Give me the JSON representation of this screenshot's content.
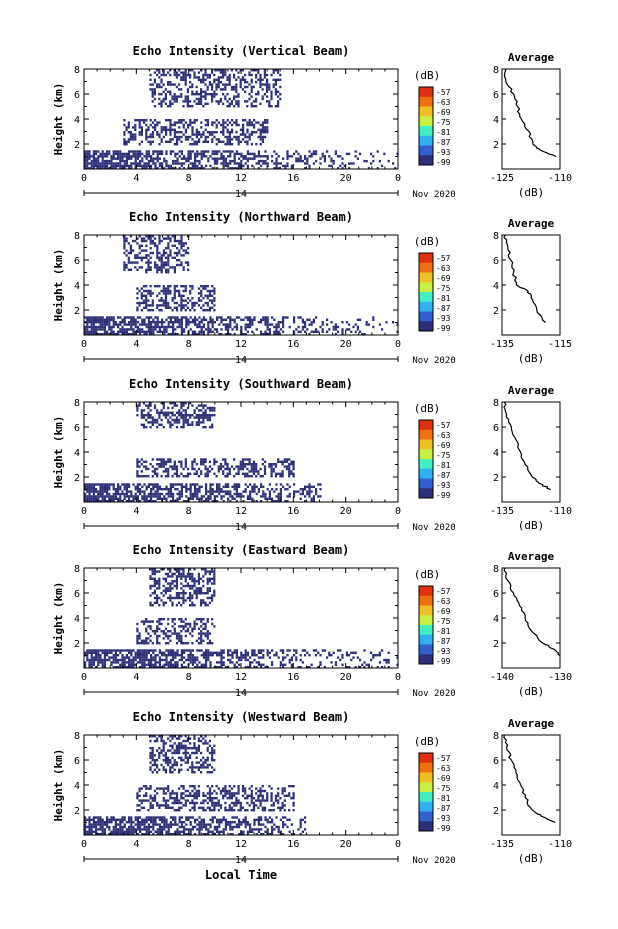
{
  "figure": {
    "xlabel": "Local Time",
    "date_label": "Nov 2020",
    "day_label": "14",
    "cbar_unit": "(dB)",
    "avg_title": "Average",
    "avg_xlabel": "(dB)"
  },
  "colorbar": {
    "ticks": [
      "-57",
      "-63",
      "-69",
      "-75",
      "-81",
      "-87",
      "-93",
      "-99"
    ],
    "colors": [
      "#e03010",
      "#f07010",
      "#f0c020",
      "#c8f040",
      "#40f0c0",
      "#30b0f0",
      "#3060d0",
      "#2c2e78"
    ]
  },
  "panels": [
    {
      "title": "Echo Intensity (Vertical Beam)",
      "avg_xticks": [
        "-125",
        "-110"
      ]
    },
    {
      "title": "Echo Intensity (Northward Beam)",
      "avg_xticks": [
        "-135",
        "-115"
      ]
    },
    {
      "title": "Echo Intensity (Southward Beam)",
      "avg_xticks": [
        "-135",
        "-110"
      ]
    },
    {
      "title": "Echo Intensity (Eastward Beam)",
      "avg_xticks": [
        "-140",
        "-130"
      ]
    },
    {
      "title": "Echo Intensity (Westward Beam)",
      "avg_xticks": [
        "-135",
        "-110"
      ]
    }
  ],
  "chart_data": [
    {
      "type": "heatmap",
      "title": "Echo Intensity (Vertical Beam)",
      "xlabel": "",
      "ylabel": "Height (km)",
      "xlim": [
        0,
        24
      ],
      "ylim": [
        0,
        8
      ],
      "xticks": [
        "0",
        "4",
        "8",
        "12",
        "16",
        "20",
        "0"
      ],
      "yticks": [
        "2",
        "4",
        "6",
        "8"
      ],
      "colorbar_label": "(dB)",
      "color_range": [
        -99,
        -57
      ],
      "echo_regions": [
        {
          "x": [
            0,
            24
          ],
          "y": [
            0,
            1.5
          ]
        },
        {
          "x": [
            3,
            14
          ],
          "y": [
            2,
            4
          ]
        },
        {
          "x": [
            5,
            15
          ],
          "y": [
            5,
            8
          ]
        }
      ],
      "average_profile": {
        "xlim": [
          -125,
          -110
        ],
        "ylim": [
          0,
          8
        ],
        "points": [
          {
            "db": -124,
            "h": 8
          },
          {
            "db": -124,
            "h": 7
          },
          {
            "db": -122,
            "h": 6
          },
          {
            "db": -121,
            "h": 5
          },
          {
            "db": -120,
            "h": 4
          },
          {
            "db": -118,
            "h": 3
          },
          {
            "db": -117,
            "h": 2
          },
          {
            "db": -115,
            "h": 1.5
          },
          {
            "db": -111,
            "h": 1
          }
        ]
      }
    },
    {
      "type": "heatmap",
      "title": "Echo Intensity (Northward Beam)",
      "xlabel": "",
      "ylabel": "Height (km)",
      "xlim": [
        0,
        24
      ],
      "ylim": [
        0,
        8
      ],
      "xticks": [
        "0",
        "4",
        "8",
        "12",
        "16",
        "20",
        "0"
      ],
      "yticks": [
        "2",
        "4",
        "6",
        "8"
      ],
      "colorbar_label": "(dB)",
      "color_range": [
        -99,
        -57
      ],
      "echo_regions": [
        {
          "x": [
            0,
            24
          ],
          "y": [
            0,
            1.5
          ]
        },
        {
          "x": [
            4,
            10
          ],
          "y": [
            2,
            4
          ]
        },
        {
          "x": [
            3,
            8
          ],
          "y": [
            5,
            8
          ]
        }
      ],
      "average_profile": {
        "xlim": [
          -135,
          -115
        ],
        "ylim": [
          0,
          8
        ],
        "points": [
          {
            "db": -134,
            "h": 8
          },
          {
            "db": -133,
            "h": 7
          },
          {
            "db": -132,
            "h": 6
          },
          {
            "db": -131,
            "h": 5
          },
          {
            "db": -130,
            "h": 4
          },
          {
            "db": -126,
            "h": 3.5
          },
          {
            "db": -125,
            "h": 3
          },
          {
            "db": -123,
            "h": 2
          },
          {
            "db": -120,
            "h": 1
          }
        ]
      }
    },
    {
      "type": "heatmap",
      "title": "Echo Intensity (Southward Beam)",
      "xlabel": "",
      "ylabel": "Height (km)",
      "xlim": [
        0,
        24
      ],
      "ylim": [
        0,
        8
      ],
      "xticks": [
        "0",
        "4",
        "8",
        "12",
        "16",
        "20",
        "0"
      ],
      "yticks": [
        "2",
        "4",
        "6",
        "8"
      ],
      "colorbar_label": "(dB)",
      "color_range": [
        -99,
        -57
      ],
      "echo_regions": [
        {
          "x": [
            0,
            18
          ],
          "y": [
            0,
            1.5
          ]
        },
        {
          "x": [
            4,
            16
          ],
          "y": [
            2,
            3.5
          ]
        },
        {
          "x": [
            4,
            10
          ],
          "y": [
            6,
            8
          ]
        }
      ],
      "average_profile": {
        "xlim": [
          -135,
          -110
        ],
        "ylim": [
          0,
          8
        ],
        "points": [
          {
            "db": -134,
            "h": 8
          },
          {
            "db": -133,
            "h": 7
          },
          {
            "db": -131,
            "h": 6
          },
          {
            "db": -129,
            "h": 5
          },
          {
            "db": -127,
            "h": 4
          },
          {
            "db": -125,
            "h": 3
          },
          {
            "db": -122,
            "h": 2
          },
          {
            "db": -119,
            "h": 1.5
          },
          {
            "db": -114,
            "h": 1
          }
        ]
      }
    },
    {
      "type": "heatmap",
      "title": "Echo Intensity (Eastward Beam)",
      "xlabel": "",
      "ylabel": "Height (km)",
      "xlim": [
        0,
        24
      ],
      "ylim": [
        0,
        8
      ],
      "xticks": [
        "0",
        "4",
        "8",
        "12",
        "16",
        "20",
        "0"
      ],
      "yticks": [
        "2",
        "4",
        "6",
        "8"
      ],
      "colorbar_label": "(dB)",
      "color_range": [
        -99,
        -57
      ],
      "echo_regions": [
        {
          "x": [
            0,
            24
          ],
          "y": [
            0,
            1.5
          ]
        },
        {
          "x": [
            4,
            10
          ],
          "y": [
            2,
            4
          ]
        },
        {
          "x": [
            5,
            10
          ],
          "y": [
            5,
            8
          ]
        }
      ],
      "average_profile": {
        "xlim": [
          -140,
          -130
        ],
        "ylim": [
          0,
          8
        ],
        "points": [
          {
            "db": -139.5,
            "h": 8
          },
          {
            "db": -139,
            "h": 7
          },
          {
            "db": -138,
            "h": 6
          },
          {
            "db": -137,
            "h": 5
          },
          {
            "db": -136,
            "h": 4
          },
          {
            "db": -135,
            "h": 3
          },
          {
            "db": -133,
            "h": 2
          },
          {
            "db": -131,
            "h": 1.5
          },
          {
            "db": -130,
            "h": 1
          }
        ]
      }
    },
    {
      "type": "heatmap",
      "title": "Echo Intensity (Westward Beam)",
      "xlabel": "Local Time",
      "ylabel": "Height (km)",
      "xlim": [
        0,
        24
      ],
      "ylim": [
        0,
        8
      ],
      "xticks": [
        "0",
        "4",
        "8",
        "12",
        "16",
        "20",
        "0"
      ],
      "yticks": [
        "2",
        "4",
        "6",
        "8"
      ],
      "colorbar_label": "(dB)",
      "color_range": [
        -99,
        -57
      ],
      "echo_regions": [
        {
          "x": [
            0,
            17
          ],
          "y": [
            0,
            1.5
          ]
        },
        {
          "x": [
            4,
            16
          ],
          "y": [
            2,
            4
          ]
        },
        {
          "x": [
            5,
            10
          ],
          "y": [
            5,
            8
          ]
        }
      ],
      "average_profile": {
        "xlim": [
          -135,
          -110
        ],
        "ylim": [
          0,
          8
        ],
        "points": [
          {
            "db": -134,
            "h": 8
          },
          {
            "db": -133,
            "h": 7
          },
          {
            "db": -131,
            "h": 6
          },
          {
            "db": -129,
            "h": 5
          },
          {
            "db": -127,
            "h": 4
          },
          {
            "db": -125,
            "h": 3
          },
          {
            "db": -122,
            "h": 2
          },
          {
            "db": -118,
            "h": 1.5
          },
          {
            "db": -112,
            "h": 1
          }
        ]
      }
    }
  ]
}
